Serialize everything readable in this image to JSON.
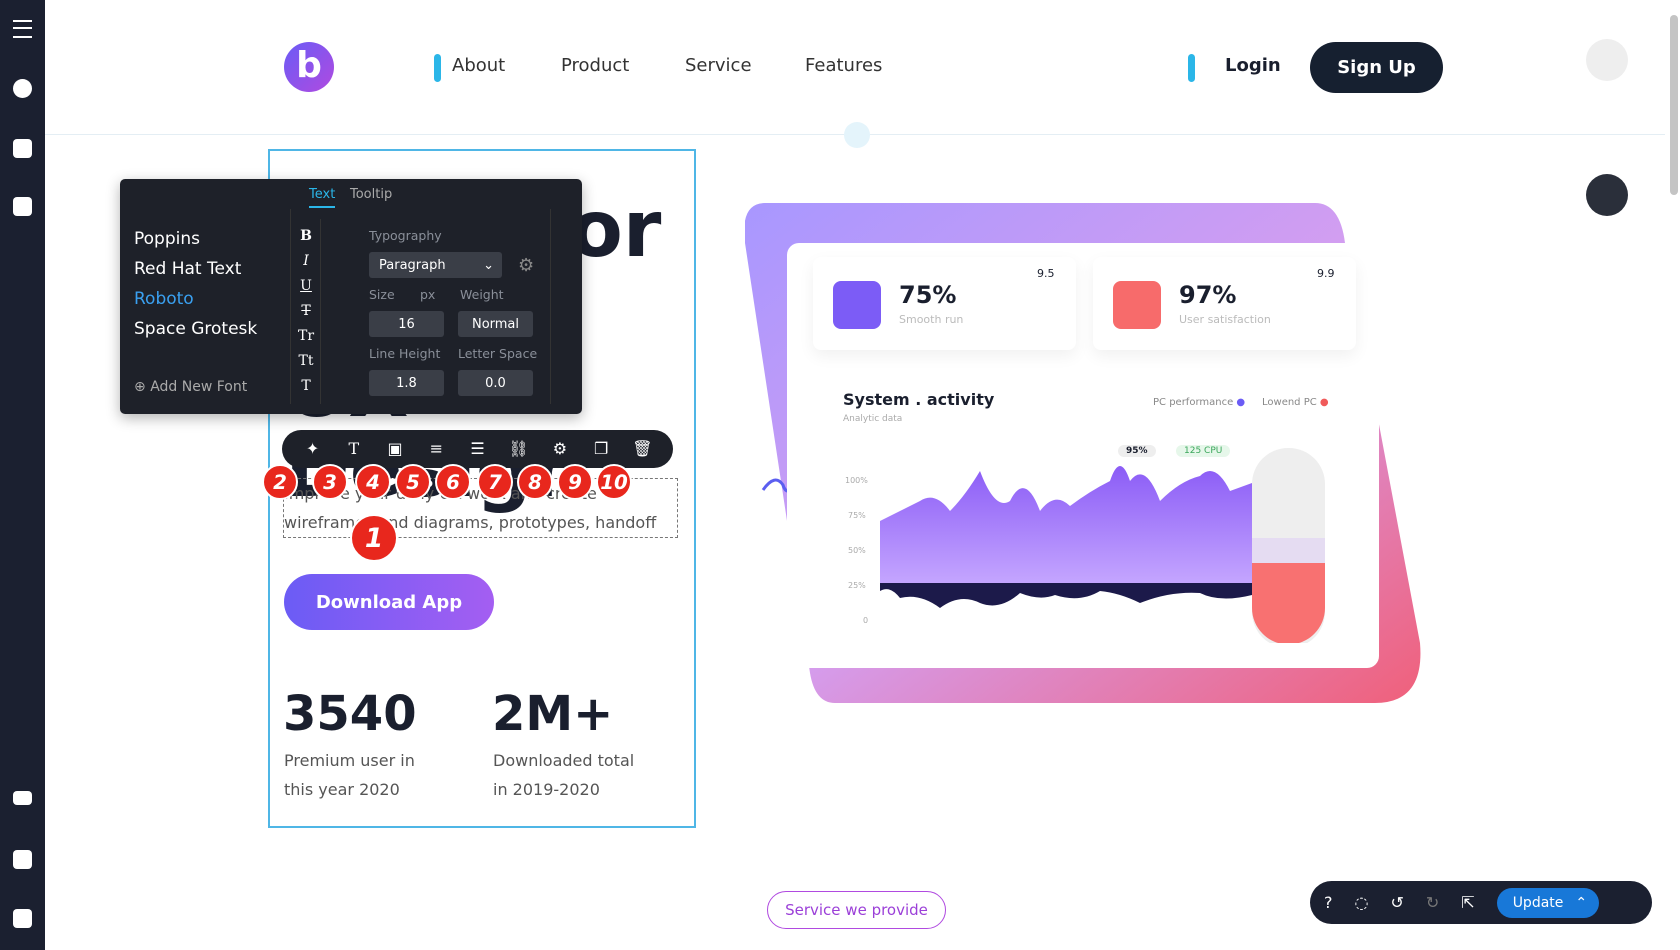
{
  "nav": {
    "links": [
      "About",
      "Product",
      "Service",
      "Features"
    ],
    "login": "Login",
    "signup": "Sign Up"
  },
  "font_panel": {
    "tabs": [
      "Text",
      "Tooltip"
    ],
    "fonts": [
      "Poppins",
      "Red Hat Text",
      "Roboto",
      "Space Grotesk"
    ],
    "add_font": "Add New Font",
    "format_buttons": [
      "B",
      "I",
      "U",
      "T",
      "Tr",
      "Tt",
      "T"
    ],
    "typography": "Typography",
    "style": "Paragraph",
    "size_label": "Size",
    "unit": "px",
    "weight_label": "Weight",
    "size": "16",
    "weight": "Normal",
    "line_height_label": "Line Height",
    "letter_space_label": "Letter Space",
    "line_height": "1.8",
    "letter_space": "0.0"
  },
  "callouts": [
    "1",
    "2",
    "3",
    "4",
    "5",
    "6",
    "7",
    "8",
    "9",
    "10"
  ],
  "hero": {
    "heading": "Tools for Better UX Design",
    "paragraph": "Improve your daily UX work and create wireframes and diagrams, prototypes, handoff documentation.",
    "button": "Download App",
    "stats": [
      {
        "value": "3540",
        "label": "Premium user in this year 2020"
      },
      {
        "value": "2M+",
        "label": "Downloaded total in 2019-2020"
      }
    ]
  },
  "dashboard": {
    "cards": [
      {
        "value": "75%",
        "label": "Smooth run",
        "score": "9.5"
      },
      {
        "value": "97%",
        "label": "User satisfaction",
        "score": "9.9"
      }
    ],
    "title": "System . activity",
    "subtitle": "Analytic data",
    "legend": [
      "PC performance",
      "Lowend PC"
    ],
    "badges": [
      "95%",
      "125 CPU"
    ],
    "axis": [
      "100%",
      "75%",
      "50%",
      "25%",
      "0"
    ]
  },
  "section_button": "Service we provide",
  "update": "Update"
}
